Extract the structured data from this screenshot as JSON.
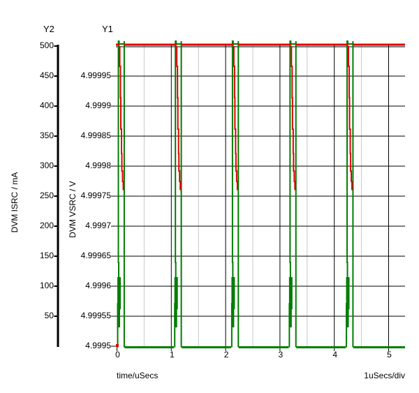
{
  "header": {
    "y2_title": "Y2",
    "y1_title": "Y1"
  },
  "axes": {
    "y2": {
      "title": "DVM ISRC / mA",
      "ticks": [
        "500",
        "450",
        "400",
        "350",
        "300",
        "250",
        "200",
        "150",
        "100",
        "50"
      ]
    },
    "y1": {
      "title": "DVM VSRC / V",
      "ticks": [
        "4.99995",
        "4.9999",
        "4.99985",
        "4.9998",
        "4.99975",
        "4.9997",
        "4.99965",
        "4.9996",
        "4.99955",
        "4.9995"
      ]
    },
    "x": {
      "title": "time/uSecs",
      "ticks": [
        "0",
        "1",
        "2",
        "3",
        "4",
        "5"
      ],
      "scale_note": "1uSecs/div"
    }
  },
  "chart_data": {
    "type": "line",
    "title": "",
    "xlabel": "time/uSecs",
    "x_axis": {
      "min": 0,
      "max": 5.3,
      "major_ticks": [
        0,
        1,
        2,
        3,
        4,
        5
      ],
      "minor_grid_step": 0.5,
      "div_note": "1uSecs/div"
    },
    "y_axes": [
      {
        "id": "Y2",
        "label": "DVM ISRC / mA",
        "min": 0,
        "max": 500,
        "tick_step": 50,
        "ticks": [
          500,
          450,
          400,
          350,
          300,
          250,
          200,
          150,
          100,
          50
        ]
      },
      {
        "id": "Y1",
        "label": "DVM VSRC / V",
        "min": 4.9995,
        "max": 5.0,
        "tick_step": 5e-05,
        "ticks": [
          4.99995,
          4.9999,
          4.99985,
          4.9998,
          4.99975,
          4.9997,
          4.99965,
          4.9996,
          4.99955,
          4.9995
        ]
      }
    ],
    "grid": {
      "horizontal": "black at every y tick",
      "vertical_major": "black at 1 uSec",
      "vertical_minor": "gray at 0.5 uSec"
    },
    "series": [
      {
        "name": "DVM ISRC",
        "axis": "Y2",
        "color": "#e00000",
        "units": "mA",
        "description": "Holds 500 mA; during each VSRC pulse it ramps steeply down to about 260 mA, then snaps back to 500 mA. Starts at 0 mA at t=0.",
        "ramp_low_ma": 260,
        "high_ma": 500,
        "approx_points": [
          [
            0,
            0
          ],
          [
            0.02,
            500
          ],
          [
            1.1,
            500
          ],
          [
            1.17,
            260
          ],
          [
            1.18,
            500
          ],
          [
            2.15,
            500
          ],
          [
            2.22,
            260
          ],
          [
            2.23,
            500
          ],
          [
            3.21,
            500
          ],
          [
            3.28,
            260
          ],
          [
            3.29,
            500
          ],
          [
            4.26,
            500
          ],
          [
            4.33,
            260
          ],
          [
            4.34,
            500
          ],
          [
            5.3,
            500
          ]
        ]
      },
      {
        "name": "DVM VSRC",
        "axis": "Y1",
        "color": "#007d00",
        "units": "V",
        "description": "Sits at 4.9995 V between pulses; narrow pulses to 5.0 V (slight overshoot) with ringing on each rising edge.",
        "low_v": 4.9995,
        "high_v": 5.0,
        "pulse_starts_us": [
          0,
          1.05,
          2.1,
          3.16,
          4.21
        ],
        "pulse_width_us": 0.14
      }
    ]
  },
  "colors": {
    "trace_red": "#e00000",
    "trace_green": "#007d00",
    "grid_major": "#000000",
    "grid_minor": "#c8c8c8",
    "background": "#ffffff"
  }
}
